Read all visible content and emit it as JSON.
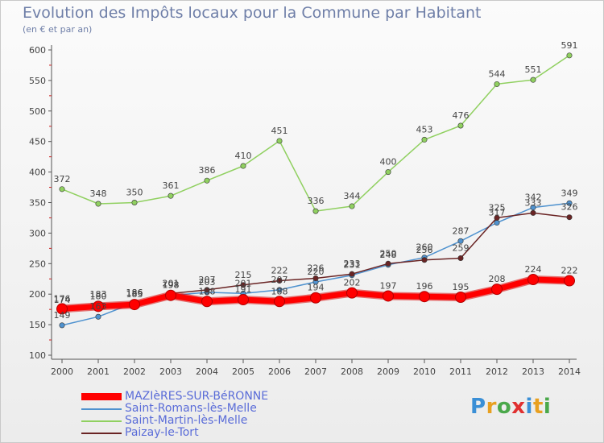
{
  "title": "Evolution des Impôts locaux pour la Commune par Habitant",
  "subtitle": "(en € et par an)",
  "logo": {
    "text": "Proxiti",
    "colors": [
      "#3a8fd6",
      "#e8a020",
      "#4aa84a",
      "#e03030",
      "#3a8fd6",
      "#e8a020",
      "#4aa84a"
    ]
  },
  "chart_data": {
    "type": "line",
    "categories": [
      "2000",
      "2001",
      "2002",
      "2003",
      "2004",
      "2005",
      "2006",
      "2007",
      "2008",
      "2009",
      "2010",
      "2011",
      "2012",
      "2013",
      "2014"
    ],
    "ylim": [
      100,
      600
    ],
    "yticks": [
      100,
      150,
      200,
      250,
      300,
      350,
      400,
      450,
      500,
      550,
      600
    ],
    "grid": false,
    "legend_position": "bottom",
    "series": [
      {
        "name": "MAZIèRES-SUR-BéRONNE",
        "color": "#ff0000",
        "values": [
          176,
          180,
          183,
          198,
          188,
          191,
          188,
          194,
          202,
          197,
          196,
          195,
          208,
          224,
          222
        ],
        "labels": [
          "176",
          "180",
          "183",
          "198",
          "188",
          "191",
          "188",
          "194",
          "202",
          "197",
          "196",
          "195",
          "208",
          "224",
          "222"
        ]
      },
      {
        "name": "Saint-Romans-lès-Melle",
        "color": "#4f92cf",
        "values": [
          149,
          163,
          186,
          198,
          203,
          201,
          207,
          220,
          231,
          248,
          260,
          287,
          317,
          342,
          349
        ],
        "labels": [
          "149",
          "163",
          "186",
          "198",
          "203",
          "201",
          "207",
          "220",
          "231",
          "248",
          "260",
          "287",
          "317",
          "342",
          "349"
        ]
      },
      {
        "name": "Saint-Martin-lès-Melle",
        "color": "#90d060",
        "values": [
          372,
          348,
          350,
          361,
          386,
          410,
          451,
          336,
          344,
          400,
          453,
          476,
          544,
          551,
          591
        ],
        "labels": [
          "372",
          "348",
          "350",
          "361",
          "386",
          "410",
          "451",
          "336",
          "344",
          "400",
          "453",
          "476",
          "544",
          "551",
          "591"
        ]
      },
      {
        "name": "Paizay-le-Tort",
        "color": "#6a2424",
        "values": [
          174,
          183,
          186,
          201,
          207,
          215,
          222,
          226,
          233,
          250,
          256,
          259,
          325,
          333,
          326
        ],
        "labels": [
          "174",
          "183",
          "186",
          "201",
          "207",
          "215",
          "222",
          "226",
          "233",
          "250",
          "256",
          "259",
          "325",
          "333",
          "326"
        ]
      }
    ]
  }
}
